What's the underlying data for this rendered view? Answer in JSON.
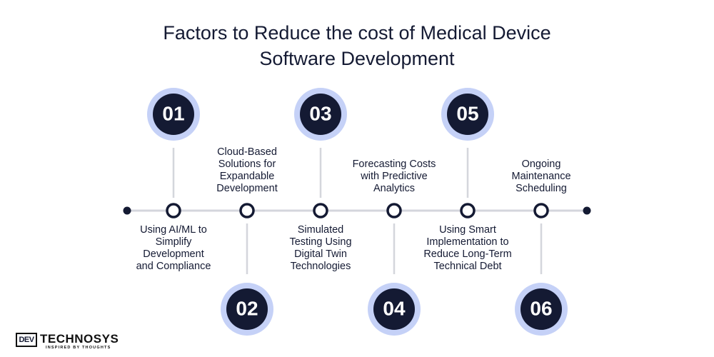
{
  "title": {
    "line1": "Factors to Reduce the cost of Medical Device",
    "line2": "Software Development"
  },
  "colors": {
    "navy": "#141a33",
    "halo": "#c5d1f7",
    "line": "#d4d6dc"
  },
  "steps": [
    {
      "number": "01",
      "lines": [
        "Using AI/ML to",
        "Simplify",
        "Development",
        "and Compliance"
      ]
    },
    {
      "number": "02",
      "lines": [
        "Cloud-Based",
        "Solutions for",
        "Expandable",
        "Development"
      ]
    },
    {
      "number": "03",
      "lines": [
        "Simulated",
        "Testing Using",
        "Digital Twin",
        "Technologies"
      ]
    },
    {
      "number": "04",
      "lines": [
        "Forecasting Costs",
        "with Predictive",
        "Analytics"
      ]
    },
    {
      "number": "05",
      "lines": [
        "Using Smart",
        "Implementation to",
        "Reduce Long-Term",
        "Technical Debt"
      ]
    },
    {
      "number": "06",
      "lines": [
        "Ongoing",
        "Maintenance",
        "Scheduling"
      ]
    }
  ],
  "logo": {
    "mark": "DEV",
    "word": "TECHNOSYS",
    "tagline": "INSPIRED BY THOUGHTS"
  }
}
